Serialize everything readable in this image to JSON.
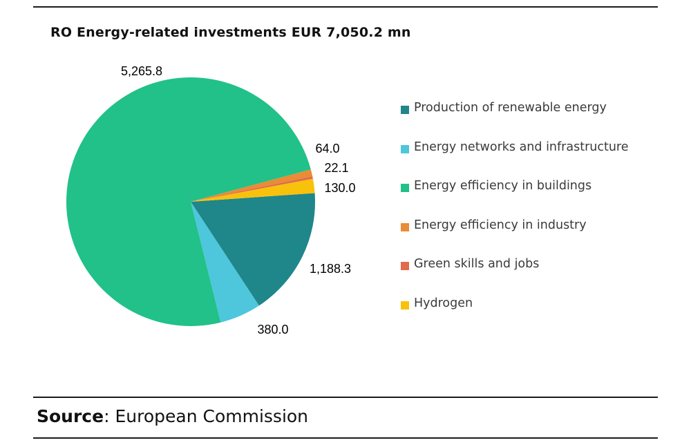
{
  "chart_data": {
    "type": "pie",
    "title": "RO Energy-related investments EUR 7,050.2 mn",
    "slices": [
      {
        "name": "Production of renewable energy",
        "value": 1188.3,
        "label": "1,188.3",
        "color": "#1f868a"
      },
      {
        "name": "Energy networks and infrastructure",
        "value": 380.0,
        "label": "380.0",
        "color": "#4ec6dc"
      },
      {
        "name": "Energy efficiency in buildings",
        "value": 5265.8,
        "label": "5,265.8",
        "color": "#21c189"
      },
      {
        "name": "Energy efficiency in industry",
        "value": 64.0,
        "label": "64.0",
        "color": "#ea8b35"
      },
      {
        "name": "Green skills and jobs",
        "value": 22.1,
        "label": "22.1",
        "color": "#e06a4e"
      },
      {
        "name": "Hydrogen",
        "value": 130.0,
        "label": "130.0",
        "color": "#f8c10c"
      }
    ],
    "legend_position": "right"
  },
  "source": {
    "key": "Source",
    "text": ": European Commission"
  }
}
